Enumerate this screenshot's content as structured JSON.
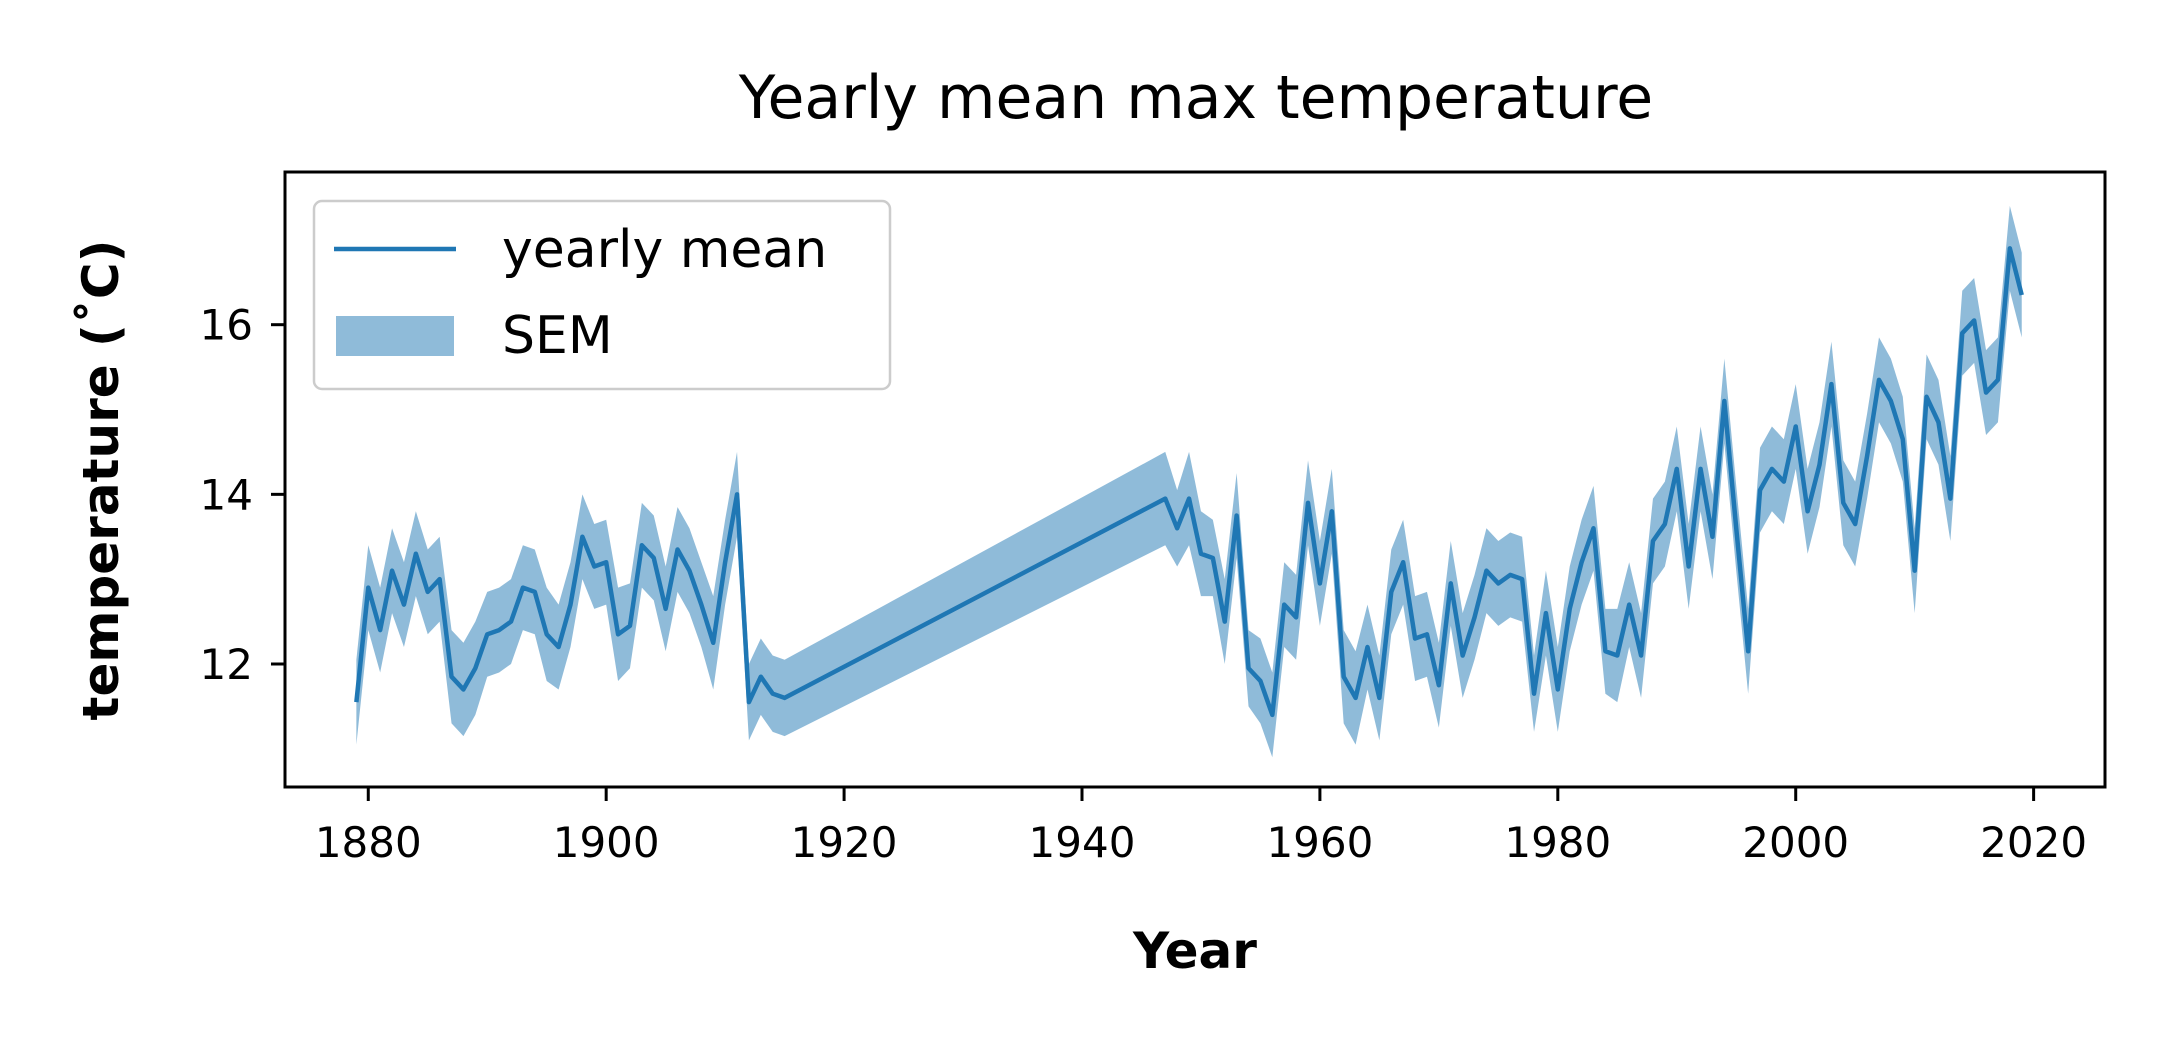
{
  "chart_data": {
    "type": "line",
    "title": "Yearly mean max temperature",
    "xlabel": "Year",
    "ylabel": "temperature (˚C)",
    "xlim": [
      1873,
      2026
    ],
    "ylim": [
      10.55,
      17.8
    ],
    "xticks": [
      1880,
      1900,
      1920,
      1940,
      1960,
      1980,
      2000,
      2020
    ],
    "yticks": [
      12,
      14,
      16
    ],
    "grid": false,
    "legend_position": "top-left",
    "colors": {
      "line": "#1f77b4",
      "band": "#1f77b4",
      "band_opacity": 0.5
    },
    "series": [
      {
        "name": "yearly mean",
        "kind": "line",
        "x": [
          1879,
          1880,
          1881,
          1882,
          1883,
          1884,
          1885,
          1886,
          1887,
          1888,
          1889,
          1890,
          1891,
          1892,
          1893,
          1894,
          1895,
          1896,
          1897,
          1898,
          1899,
          1900,
          1901,
          1902,
          1903,
          1904,
          1905,
          1906,
          1907,
          1908,
          1909,
          1910,
          1911,
          1912,
          1913,
          1914,
          1915,
          1947,
          1948,
          1949,
          1950,
          1951,
          1952,
          1953,
          1954,
          1955,
          1956,
          1957,
          1958,
          1959,
          1960,
          1961,
          1962,
          1963,
          1964,
          1965,
          1966,
          1967,
          1968,
          1969,
          1970,
          1971,
          1972,
          1973,
          1974,
          1975,
          1976,
          1977,
          1978,
          1979,
          1980,
          1981,
          1982,
          1983,
          1984,
          1985,
          1986,
          1987,
          1988,
          1989,
          1990,
          1991,
          1992,
          1993,
          1994,
          1995,
          1996,
          1997,
          1998,
          1999,
          2000,
          2001,
          2002,
          2003,
          2004,
          2005,
          2006,
          2007,
          2008,
          2009,
          2010,
          2011,
          2012,
          2013,
          2014,
          2015,
          2016,
          2017,
          2018,
          2019
        ],
        "y": [
          11.55,
          12.9,
          12.4,
          13.1,
          12.7,
          13.3,
          12.85,
          13.0,
          11.85,
          11.7,
          11.95,
          12.35,
          12.4,
          12.5,
          12.9,
          12.85,
          12.35,
          12.2,
          12.7,
          13.5,
          13.15,
          13.2,
          12.35,
          12.45,
          13.4,
          13.25,
          12.65,
          13.35,
          13.1,
          12.7,
          12.25,
          13.2,
          14.0,
          11.55,
          11.85,
          11.65,
          11.6,
          13.95,
          13.6,
          13.95,
          13.3,
          13.25,
          12.5,
          13.75,
          11.95,
          11.8,
          11.4,
          12.7,
          12.55,
          13.9,
          12.95,
          13.8,
          11.85,
          11.6,
          12.2,
          11.6,
          12.85,
          13.2,
          12.3,
          12.35,
          11.75,
          12.95,
          12.1,
          12.55,
          13.1,
          12.95,
          13.05,
          13.0,
          11.65,
          12.6,
          11.7,
          12.65,
          13.2,
          13.6,
          12.15,
          12.1,
          12.7,
          12.1,
          13.45,
          13.65,
          14.3,
          13.15,
          14.3,
          13.5,
          15.1,
          13.6,
          12.15,
          14.05,
          14.3,
          14.15,
          14.8,
          13.8,
          14.35,
          15.3,
          13.9,
          13.65,
          14.45,
          15.35,
          15.1,
          14.65,
          13.1,
          15.15,
          14.85,
          13.95,
          15.9,
          16.05,
          15.2,
          15.35,
          16.9,
          16.35
        ]
      },
      {
        "name": "SEM",
        "kind": "band",
        "lower": [
          11.05,
          12.4,
          11.9,
          12.6,
          12.2,
          12.8,
          12.35,
          12.5,
          11.3,
          11.15,
          11.4,
          11.85,
          11.9,
          12.0,
          12.4,
          12.35,
          11.8,
          11.7,
          12.2,
          13.0,
          12.65,
          12.7,
          11.8,
          11.95,
          12.9,
          12.75,
          12.15,
          12.85,
          12.6,
          12.2,
          11.7,
          12.7,
          13.5,
          11.1,
          11.4,
          11.2,
          11.15,
          13.4,
          13.15,
          13.4,
          12.8,
          12.8,
          12.0,
          13.25,
          11.5,
          11.3,
          10.9,
          12.2,
          12.05,
          13.4,
          12.45,
          13.3,
          11.3,
          11.05,
          11.7,
          11.1,
          12.35,
          12.7,
          11.8,
          11.85,
          11.25,
          12.45,
          11.6,
          12.05,
          12.6,
          12.45,
          12.55,
          12.5,
          11.2,
          12.1,
          11.2,
          12.15,
          12.7,
          13.1,
          11.65,
          11.55,
          12.2,
          11.6,
          12.95,
          13.15,
          13.8,
          12.65,
          13.8,
          13.0,
          14.6,
          13.1,
          11.65,
          13.55,
          13.8,
          13.65,
          14.3,
          13.3,
          13.85,
          14.8,
          13.4,
          13.15,
          13.95,
          14.85,
          14.6,
          14.15,
          12.6,
          14.65,
          14.35,
          13.45,
          15.4,
          15.55,
          14.7,
          14.85,
          16.4,
          15.85
        ],
        "upper": [
          12.05,
          13.4,
          12.9,
          13.6,
          13.2,
          13.8,
          13.35,
          13.5,
          12.4,
          12.25,
          12.5,
          12.85,
          12.9,
          13.0,
          13.4,
          13.35,
          12.9,
          12.7,
          13.2,
          14.0,
          13.65,
          13.7,
          12.9,
          12.95,
          13.9,
          13.75,
          13.15,
          13.85,
          13.6,
          13.2,
          12.8,
          13.7,
          14.5,
          12.0,
          12.3,
          12.1,
          12.05,
          14.5,
          14.05,
          14.5,
          13.8,
          13.7,
          13.0,
          14.25,
          12.4,
          12.3,
          11.9,
          13.2,
          13.05,
          14.4,
          13.45,
          14.3,
          12.4,
          12.15,
          12.7,
          12.1,
          13.35,
          13.7,
          12.8,
          12.85,
          12.25,
          13.45,
          12.6,
          13.05,
          13.6,
          13.45,
          13.55,
          13.5,
          12.1,
          13.1,
          12.2,
          13.15,
          13.7,
          14.1,
          12.65,
          12.65,
          13.2,
          12.6,
          13.95,
          14.15,
          14.8,
          13.65,
          14.8,
          14.0,
          15.6,
          14.1,
          12.65,
          14.55,
          14.8,
          14.65,
          15.3,
          14.3,
          14.85,
          15.8,
          14.4,
          14.15,
          14.95,
          15.85,
          15.6,
          15.15,
          13.6,
          15.65,
          15.35,
          14.45,
          16.4,
          16.55,
          15.7,
          15.85,
          17.4,
          16.85
        ]
      }
    ]
  }
}
